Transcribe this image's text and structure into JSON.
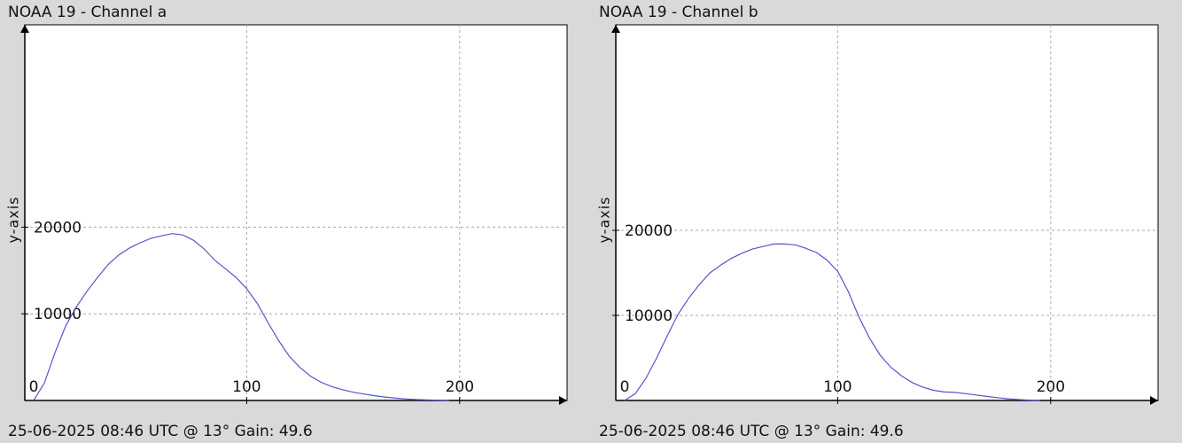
{
  "colors": {
    "background": "#d9d9d9",
    "plot_bg": "#ffffff",
    "line": "#5555cc",
    "grid": "#aaaaaa",
    "axis": "#000000"
  },
  "panels": [
    {
      "title": "NOAA 19 - Channel a",
      "footer": "25-06-2025 08:46 UTC @ 13° Gain: 49.6",
      "ylabel": "y-axis"
    },
    {
      "title": "NOAA 19 - Channel b",
      "footer": "25-06-2025 08:46 UTC @ 13° Gain: 49.6",
      "ylabel": "y-axis"
    }
  ],
  "chart_data": [
    {
      "type": "line",
      "title": "NOAA 19 - Channel a",
      "xlabel": "",
      "ylabel": "y-axis",
      "xlim": [
        0,
        255
      ],
      "ylim": [
        0,
        20000
      ],
      "xticks": [
        0,
        100,
        200
      ],
      "yticks": [
        10000,
        20000
      ],
      "grid": true,
      "series": [
        {
          "x": [
            0,
            5,
            10,
            15,
            20,
            25,
            30,
            35,
            40,
            45,
            50,
            55,
            60,
            65,
            70,
            75,
            80,
            85,
            90,
            95,
            100,
            105,
            110,
            115,
            120,
            125,
            130,
            135,
            140,
            145,
            150,
            155,
            160,
            165,
            170,
            175,
            180,
            185,
            190,
            195
          ],
          "values": [
            0,
            2000,
            5500,
            8600,
            10800,
            12600,
            14200,
            15700,
            16800,
            17600,
            18200,
            18700,
            19000,
            19250,
            19100,
            18500,
            17500,
            16200,
            15200,
            14200,
            12900,
            11200,
            9000,
            6900,
            5100,
            3800,
            2800,
            2100,
            1600,
            1250,
            950,
            750,
            550,
            400,
            270,
            170,
            100,
            60,
            30,
            10
          ]
        }
      ]
    },
    {
      "type": "line",
      "title": "NOAA 19 - Channel b",
      "xlabel": "",
      "ylabel": "y-axis",
      "xlim": [
        0,
        255
      ],
      "ylim": [
        0,
        20000
      ],
      "xticks": [
        0,
        100,
        200
      ],
      "yticks": [
        10000,
        20000
      ],
      "grid": true,
      "series": [
        {
          "x": [
            0,
            5,
            10,
            15,
            20,
            25,
            30,
            35,
            40,
            45,
            50,
            55,
            60,
            65,
            70,
            75,
            80,
            85,
            90,
            95,
            100,
            105,
            110,
            115,
            120,
            125,
            130,
            135,
            140,
            145,
            150,
            155,
            160,
            165,
            170,
            175,
            180,
            185,
            190,
            195
          ],
          "values": [
            0,
            800,
            2600,
            5000,
            7600,
            10100,
            12000,
            13600,
            15000,
            15900,
            16700,
            17300,
            17800,
            18100,
            18400,
            18400,
            18300,
            17900,
            17400,
            16500,
            15200,
            12800,
            9800,
            7300,
            5300,
            3900,
            2900,
            2100,
            1550,
            1200,
            1000,
            950,
            800,
            650,
            480,
            330,
            200,
            100,
            40,
            10
          ]
        }
      ]
    }
  ]
}
